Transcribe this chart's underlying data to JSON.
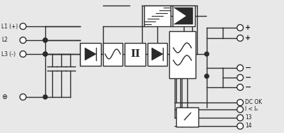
{
  "bg_color": "#e8e8e8",
  "line_color": "#2a2a2a",
  "box_fill": "#ffffff",
  "text_color": "#1a1a1a",
  "lw": 1.0,
  "input_labels": [
    "L1 (+)",
    "L2",
    "L3 (-)"
  ],
  "ground_label": "⊕",
  "signal_labels": [
    "DC OK",
    "I < Iₙ",
    "13",
    "14"
  ]
}
